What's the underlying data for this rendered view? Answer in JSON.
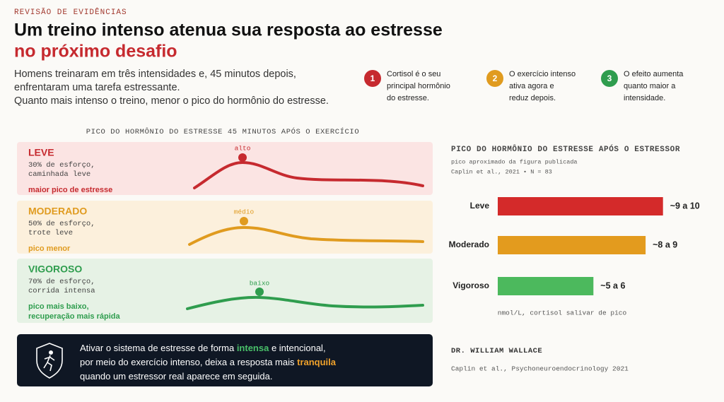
{
  "header": {
    "eyebrow": "REVISÃO DE EVIDÊNCIAS",
    "title": "Um treino intenso atenua sua resposta ao estresse",
    "title_highlight": "no próximo desafio",
    "intro": [
      "Homens treinaram em três intensidades e, 45 minutos depois,",
      "enfrentaram uma tarefa estressante.",
      "Quanto mais intenso o treino, menor o pico do hormônio do estresse."
    ]
  },
  "steps": [
    {
      "number": "1",
      "color": "#c62a2f",
      "text": [
        "Cortisol é o seu",
        "principal hormônio",
        "do estresse."
      ]
    },
    {
      "number": "2",
      "color": "#e09b1f",
      "text": [
        "O exercício intenso",
        "ativa agora e",
        "reduz depois."
      ]
    },
    {
      "number": "3",
      "color": "#2f9d4e",
      "text": [
        "O efeito aumenta",
        "quanto maior a",
        "intensidade."
      ]
    }
  ],
  "panels": {
    "title": "PICO DO HORMÔNIO DO ESTRESSE 45 MINUTOS APÓS O EXERCÍCIO",
    "items": [
      {
        "name": "LEVE",
        "color": "#c62a2f",
        "background": "#fbe4e3",
        "desc": [
          "30% de esforço,",
          "caminhada leve"
        ],
        "note": [
          "maior pico de estresse"
        ],
        "peak": "alto"
      },
      {
        "name": "MODERADO",
        "color": "#e09b1f",
        "background": "#fcf0dc",
        "desc": [
          "50% de esforço,",
          "trote leve"
        ],
        "note": [
          "pico menor"
        ],
        "peak": "médio"
      },
      {
        "name": "VIGOROSO",
        "color": "#2f9d4e",
        "background": "#e6f2e5",
        "desc": [
          "70% de esforço,",
          "corrida intensa"
        ],
        "note": [
          "pico mais baixo,",
          "recuperação mais rápida"
        ],
        "peak": "baixo"
      }
    ]
  },
  "chart_data": {
    "type": "bar",
    "orientation": "horizontal",
    "title": "PICO DO HORMÔNIO DO ESTRESSE APÓS O ESTRESSOR",
    "subtitle": "pico aproximado da figura publicada",
    "source": "Caplin et al., 2021 • N = 83",
    "categories": [
      "Leve",
      "Moderado",
      "Vigoroso"
    ],
    "values": [
      9.5,
      8.5,
      5.5
    ],
    "value_labels": [
      "~9 a 10",
      "~8 a 9",
      "~5 a 6"
    ],
    "colors": [
      "#d42a2a",
      "#e39b1e",
      "#4cb95d"
    ],
    "xlabel": "nmol/L, cortisol salivar de pico"
  },
  "callout": {
    "lines": [
      [
        {
          "text": "Ativar o sistema de estresse de forma ",
          "color": "#ffffff"
        },
        {
          "text": "intensa",
          "color": "#49c069"
        },
        {
          "text": " e intencional,",
          "color": "#ffffff"
        }
      ],
      [
        {
          "text": "por meio do exercício intenso, deixa a resposta mais ",
          "color": "#ffffff"
        },
        {
          "text": "tranquila",
          "color": "#f0a22b"
        }
      ],
      [
        {
          "text": "quando um estressor real aparece em seguida.",
          "color": "#ffffff"
        }
      ]
    ]
  },
  "footer": {
    "author": "DR. WILLIAM WALLACE",
    "citation": "Caplin et al., Psychoneuroendocrinology 2021"
  }
}
